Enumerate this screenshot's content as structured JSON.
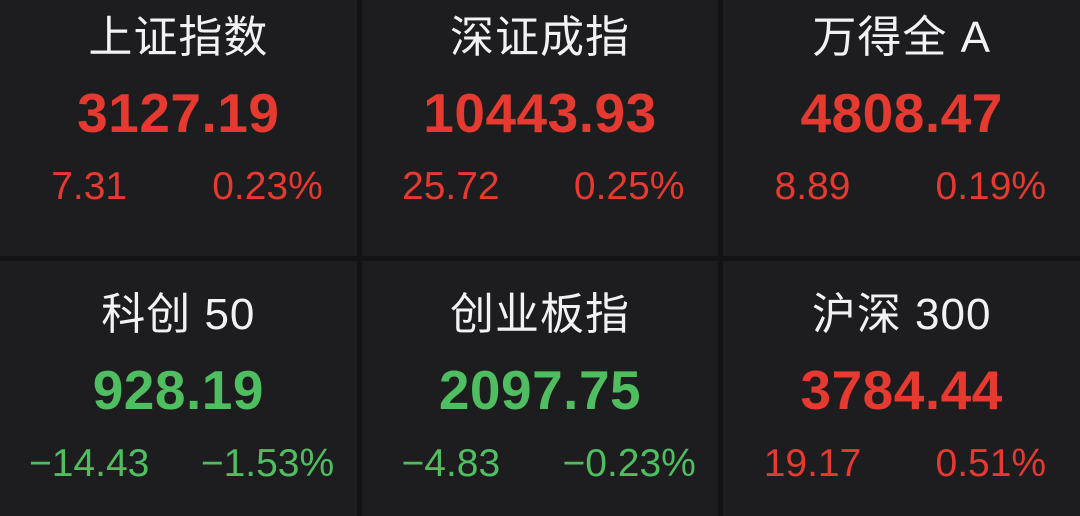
{
  "theme": {
    "background": "#131315",
    "panel": "#1d1d1f",
    "divider": "#131315",
    "title_color": "#f2f2f4",
    "up_color": "#e6392f",
    "down_color": "#4fbe60"
  },
  "board": {
    "columns": 3,
    "rows": 2
  },
  "indices": [
    {
      "name": "上证指数",
      "value": "3127.19",
      "change": "7.31",
      "change_pct": "0.23%",
      "direction": "up"
    },
    {
      "name": "深证成指",
      "value": "10443.93",
      "change": "25.72",
      "change_pct": "0.25%",
      "direction": "up"
    },
    {
      "name": "万得全 A",
      "value": "4808.47",
      "change": "8.89",
      "change_pct": "0.19%",
      "direction": "up"
    },
    {
      "name": "科创 50",
      "value": "928.19",
      "change": "−14.43",
      "change_pct": "−1.53%",
      "direction": "down"
    },
    {
      "name": "创业板指",
      "value": "2097.75",
      "change": "−4.83",
      "change_pct": "−0.23%",
      "direction": "down"
    },
    {
      "name": "沪深 300",
      "value": "3784.44",
      "change": "19.17",
      "change_pct": "0.51%",
      "direction": "up"
    }
  ]
}
